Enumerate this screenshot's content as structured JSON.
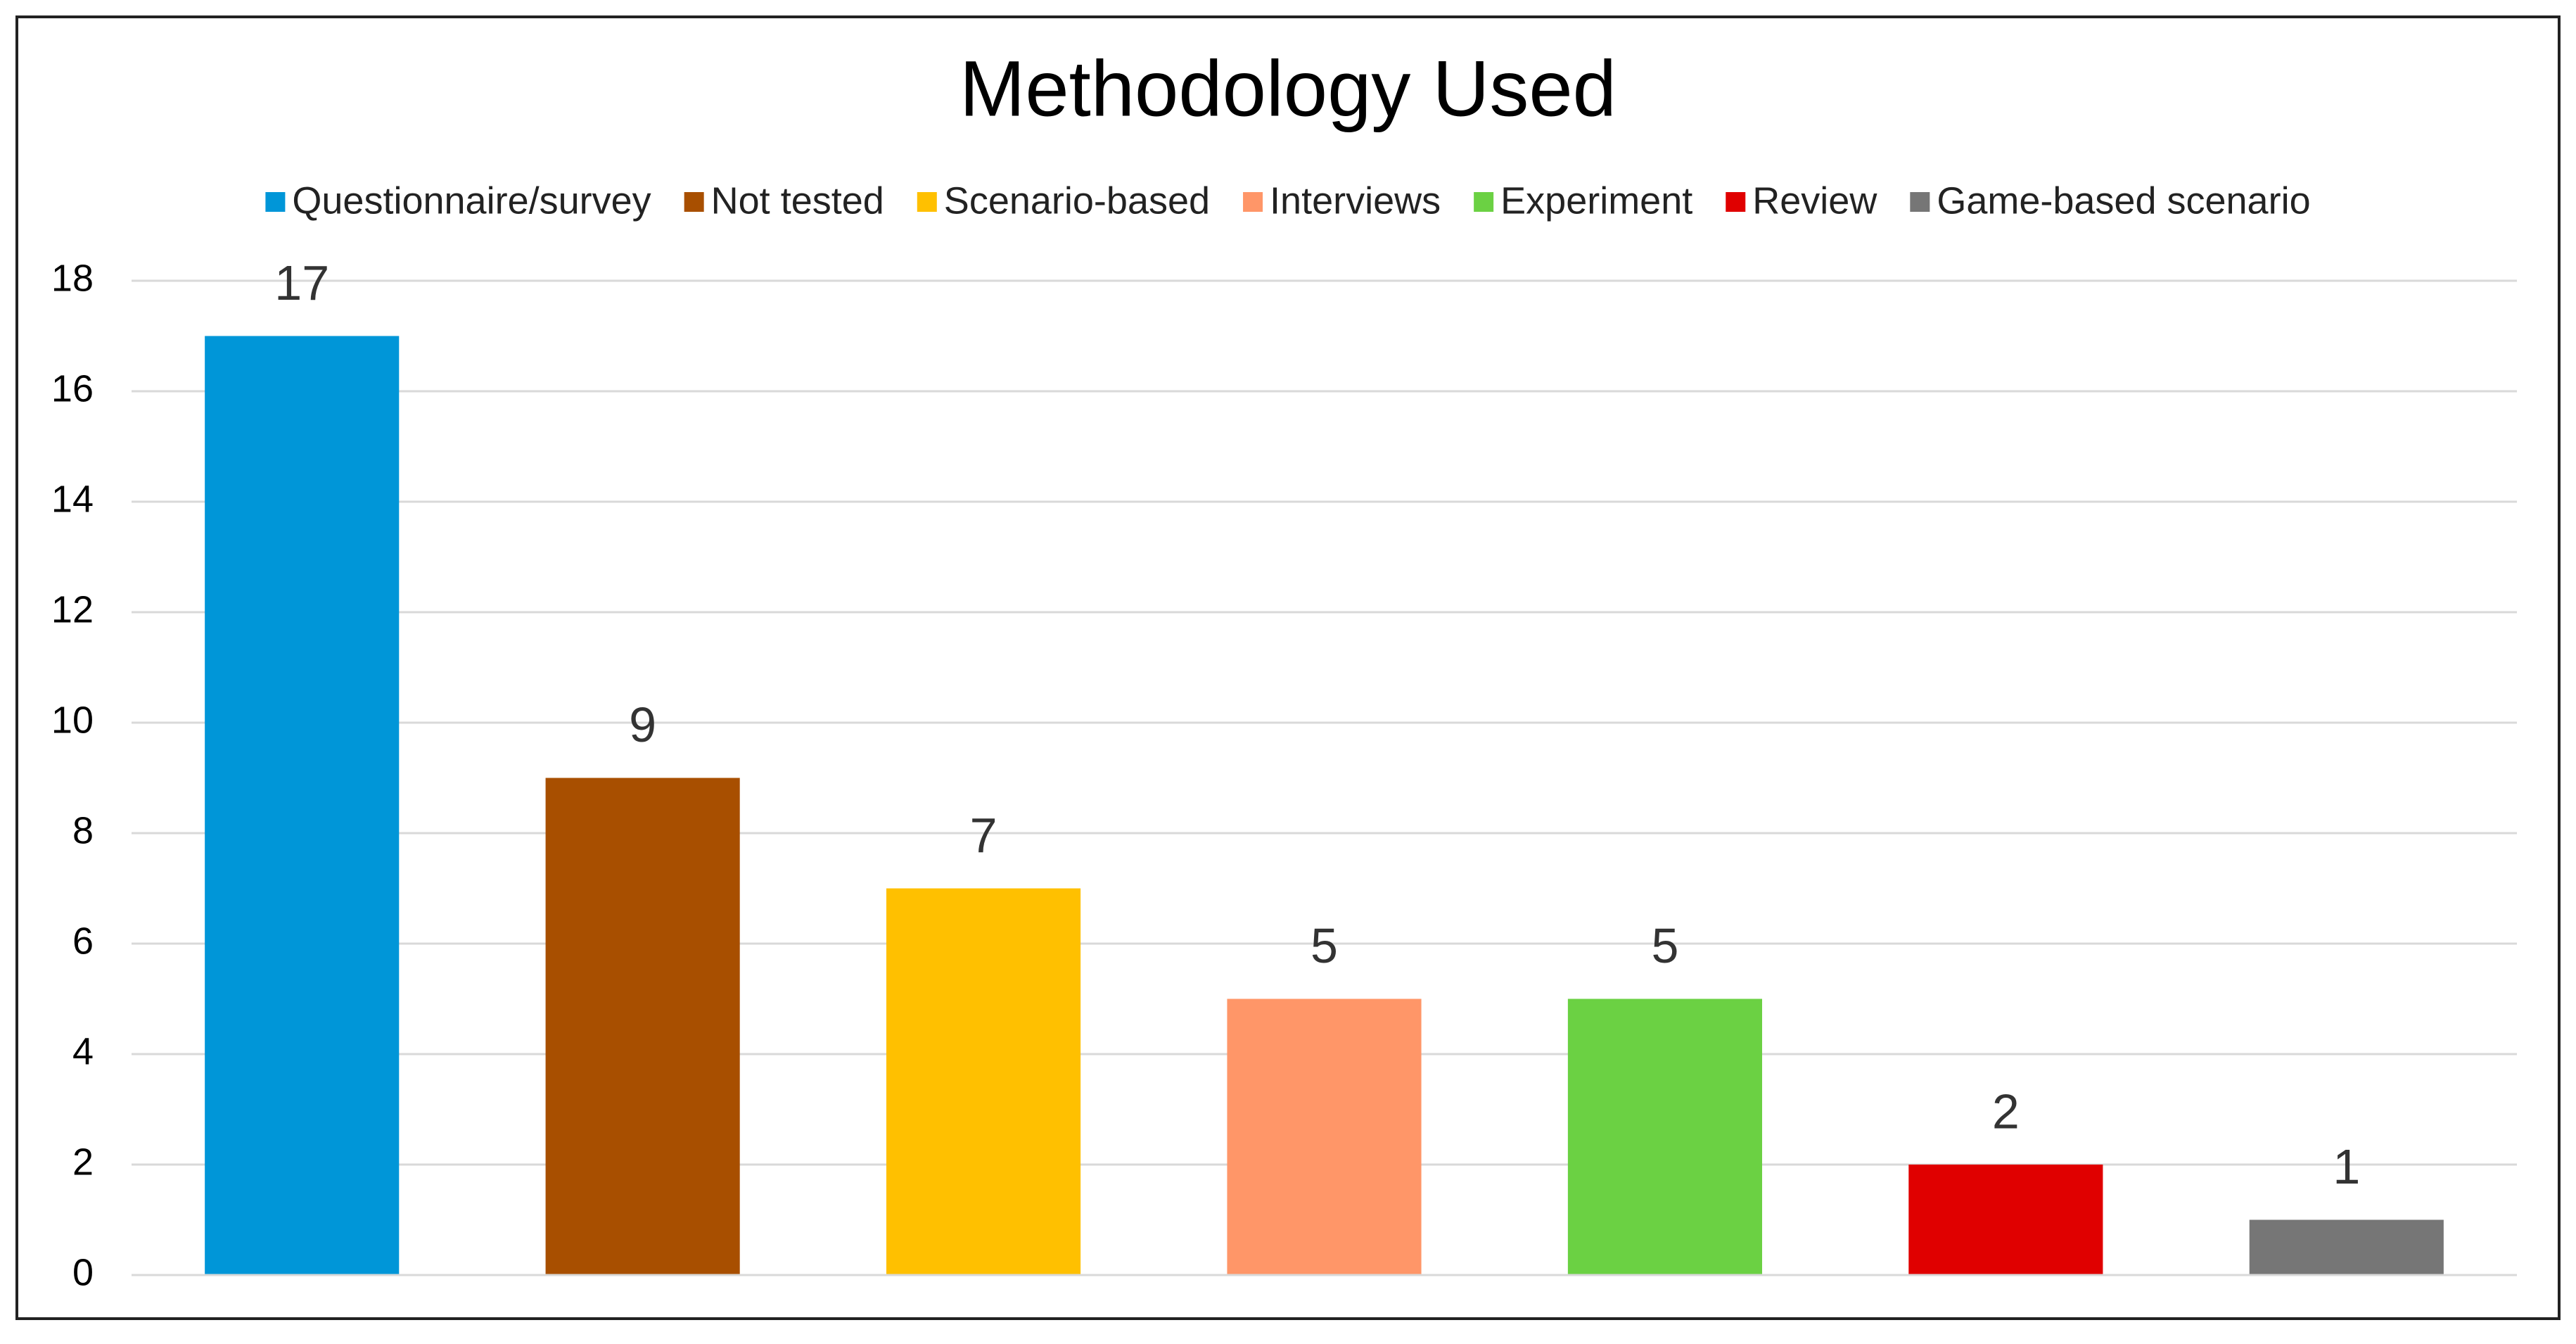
{
  "chart_data": {
    "type": "bar",
    "title": "Methodology Used",
    "categories": [
      null
    ],
    "series": [
      {
        "name": "Questionnaire/survey",
        "color": "#0096d8",
        "values": [
          17
        ]
      },
      {
        "name": "Not tested",
        "color": "#a84f00",
        "values": [
          9
        ]
      },
      {
        "name": "Scenario-based",
        "color": "#ffc000",
        "values": [
          7
        ]
      },
      {
        "name": "Interviews",
        "color": "#ff9668",
        "values": [
          5
        ]
      },
      {
        "name": "Experiment",
        "color": "#6bd143",
        "values": [
          5
        ]
      },
      {
        "name": "Review",
        "color": "#e00000",
        "values": [
          2
        ]
      },
      {
        "name": "Game-based scenario",
        "color": "#767676",
        "values": [
          1
        ]
      }
    ],
    "ylim": [
      0,
      18
    ],
    "yticks": [
      0,
      2,
      4,
      6,
      8,
      10,
      12,
      14,
      16,
      18
    ],
    "grid": true,
    "legend": "top"
  }
}
